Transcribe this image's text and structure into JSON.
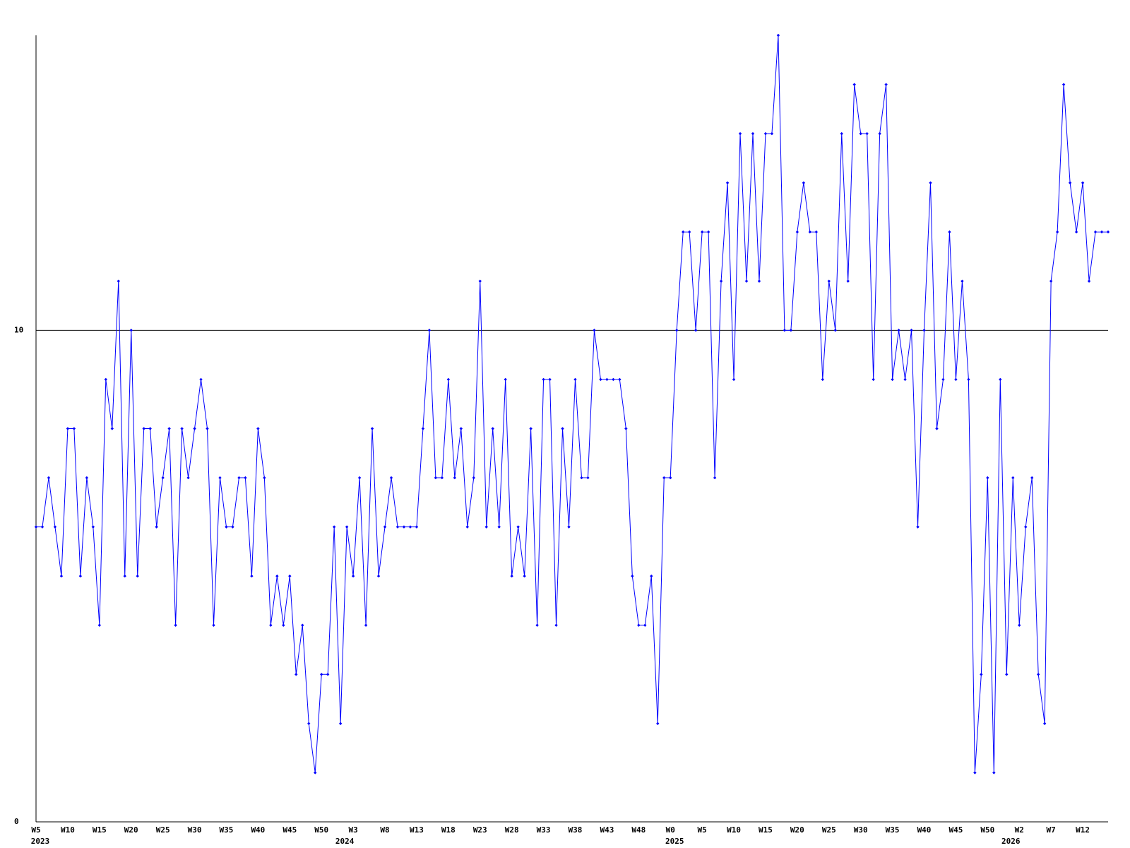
{
  "chart_data": {
    "type": "line",
    "categories": [
      "W5",
      null,
      null,
      null,
      null,
      "W10",
      null,
      null,
      null,
      null,
      "W15",
      null,
      null,
      null,
      null,
      "W20",
      null,
      null,
      null,
      null,
      "W25",
      null,
      null,
      null,
      null,
      "W30",
      null,
      null,
      null,
      null,
      "W35",
      null,
      null,
      null,
      null,
      "W40",
      null,
      null,
      null,
      null,
      "W45",
      null,
      null,
      null,
      null,
      "W50",
      null,
      null,
      null,
      null,
      "W3",
      null,
      null,
      null,
      null,
      "W8",
      null,
      null,
      null,
      null,
      "W13",
      null,
      null,
      null,
      null,
      "W18",
      null,
      null,
      null,
      null,
      "W23",
      null,
      null,
      null,
      null,
      "W28",
      null,
      null,
      null,
      null,
      "W33",
      null,
      null,
      null,
      null,
      "W38",
      null,
      null,
      null,
      null,
      "W43",
      null,
      null,
      null,
      null,
      "W48",
      null,
      null,
      null,
      null,
      "W0",
      null,
      null,
      null,
      null,
      "W5",
      null,
      null,
      null,
      null,
      "W10",
      null,
      null,
      null,
      null,
      "W15",
      null,
      null,
      null,
      null,
      "W20",
      null,
      null,
      null,
      null,
      "W25",
      null,
      null,
      null,
      null,
      "W30",
      null,
      null,
      null,
      null,
      "W35",
      null,
      null,
      null,
      null,
      "W40",
      null,
      null,
      null,
      null,
      "W45",
      null,
      null,
      null,
      null,
      "W50",
      null,
      null,
      null,
      null,
      "W2",
      null,
      null,
      null,
      null,
      "W7",
      null,
      null,
      null,
      null,
      "W12",
      null,
      null,
      null,
      null
    ],
    "year_labels": [
      "2023",
      null,
      null,
      null,
      null,
      null,
      null,
      null,
      null,
      null,
      null,
      null,
      null,
      null,
      null,
      null,
      null,
      null,
      null,
      null,
      null,
      null,
      null,
      null,
      null,
      null,
      null,
      null,
      null,
      null,
      null,
      null,
      null,
      null,
      null,
      null,
      null,
      null,
      null,
      null,
      null,
      null,
      null,
      null,
      null,
      null,
      null,
      null,
      "2024",
      null,
      null,
      null,
      null,
      null,
      null,
      null,
      null,
      null,
      null,
      null,
      null,
      null,
      null,
      null,
      null,
      null,
      null,
      null,
      null,
      null,
      null,
      null,
      null,
      null,
      null,
      null,
      null,
      null,
      null,
      null,
      null,
      null,
      null,
      null,
      null,
      null,
      null,
      null,
      null,
      null,
      null,
      null,
      null,
      null,
      null,
      null,
      null,
      null,
      null,
      null,
      "2025",
      null,
      null,
      null,
      null,
      null,
      null,
      null,
      null,
      null,
      null,
      null,
      null,
      null,
      null,
      null,
      null,
      null,
      null,
      null,
      null,
      null,
      null,
      null,
      null,
      null,
      null,
      null,
      null,
      null,
      null,
      null,
      null,
      null,
      null,
      null,
      null,
      null,
      null,
      null,
      null,
      null,
      null,
      null,
      null,
      null,
      null,
      null,
      null,
      null,
      null,
      null,
      null,
      "2026",
      null,
      null,
      null,
      null,
      null,
      null,
      null,
      null,
      null,
      null,
      null,
      null,
      null,
      null,
      null,
      null
    ],
    "series": [
      {
        "color": "#0000ff",
        "values": [
          6,
          6,
          7,
          6,
          5,
          8,
          8,
          5,
          7,
          6,
          4,
          9,
          8,
          11,
          5,
          10,
          5,
          8,
          8,
          6,
          7,
          8,
          4,
          8,
          7,
          8,
          9,
          8,
          4,
          7,
          6,
          6,
          7,
          7,
          5,
          8,
          7,
          4,
          5,
          4,
          5,
          3,
          4,
          2,
          1,
          3,
          3,
          6,
          2,
          6,
          5,
          7,
          4,
          8,
          5,
          6,
          7,
          6,
          6,
          6,
          6,
          8,
          10,
          7,
          7,
          9,
          7,
          8,
          6,
          7,
          11,
          6,
          8,
          6,
          9,
          5,
          6,
          5,
          8,
          4,
          9,
          9,
          4,
          8,
          6,
          9,
          7,
          7,
          10,
          9,
          9,
          9,
          9,
          8,
          5,
          4,
          4,
          5,
          2,
          7,
          7,
          10,
          12,
          12,
          10,
          12,
          12,
          7,
          11,
          13,
          9,
          14,
          11,
          14,
          11,
          14,
          14,
          16,
          10,
          10,
          12,
          13,
          12,
          12,
          9,
          11,
          10,
          14,
          11,
          15,
          14,
          14,
          9,
          14,
          15,
          9,
          10,
          9,
          10,
          6,
          10,
          13,
          8,
          9,
          12,
          9,
          11,
          9,
          1,
          3,
          7,
          1,
          9,
          3,
          7,
          4,
          6,
          7,
          3,
          2,
          11,
          12,
          15,
          13,
          12,
          13,
          11,
          12,
          12,
          12
        ]
      }
    ],
    "ylim": [
      0,
      16
    ],
    "yticks": [
      0,
      10
    ],
    "grid": true
  }
}
